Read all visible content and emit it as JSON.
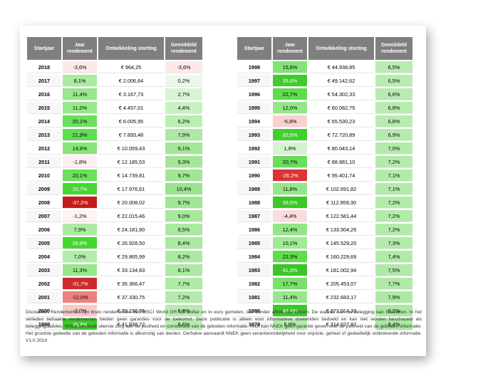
{
  "headers": [
    "Startjaar",
    "Jaar rendement",
    "Ontwikkeling storting",
    "Gemiddeld rendement"
  ],
  "left_rows": [
    {
      "year": "2018",
      "ret": "-3,6%",
      "val": "€ 964,25",
      "avg": "-3,6%",
      "rc": "#fde9ea",
      "ac": "#fde9ea"
    },
    {
      "year": "2017",
      "ret": "8,1%",
      "val": "€ 2.006,64",
      "avg": "0,2%",
      "rc": "#a9eca0",
      "ac": "#ecf9ea"
    },
    {
      "year": "2016",
      "ret": "11,4%",
      "val": "€ 3.167,73",
      "avg": "2,7%",
      "rc": "#96e88a",
      "ac": "#d8f5d3"
    },
    {
      "year": "2015",
      "ret": "11,0%",
      "val": "€ 4.457,01",
      "avg": "4,4%",
      "rc": "#98e88d",
      "ac": "#c8f1c1"
    },
    {
      "year": "2014",
      "ret": "20,1%",
      "val": "€ 6.005,95",
      "avg": "6,2%",
      "rc": "#6cdf5c",
      "ac": "#baeeb2"
    },
    {
      "year": "2013",
      "ret": "21,9%",
      "val": "€ 7.893,48",
      "avg": "7,9%",
      "rc": "#62dd51",
      "ac": "#ade9a4"
    },
    {
      "year": "2012",
      "ret": "14,8%",
      "val": "€ 10.059,43",
      "avg": "9,1%",
      "rc": "#86e479",
      "ac": "#a4e79a"
    },
    {
      "year": "2011",
      "ret": "-1,8%",
      "val": "€ 12.185,53",
      "avg": "9,3%",
      "rc": "#fdf0f1",
      "ac": "#a3e698"
    },
    {
      "year": "2010",
      "ret": "20,1%",
      "val": "€ 14.739,81",
      "avg": "9,7%",
      "rc": "#6cdf5c",
      "ac": "#a0e695"
    },
    {
      "year": "2009",
      "ret": "26,7%",
      "val": "€ 17.976,61",
      "avg": "10,4%",
      "rc": "#47d534",
      "ac": "#99e48d"
    },
    {
      "year": "2008",
      "ret": "-37,2%",
      "val": "€ 20.008,02",
      "avg": "9,7%",
      "rc": "#c41a1a",
      "ac": "#a0e695"
    },
    {
      "year": "2007",
      "ret": "-1,2%",
      "val": "€ 22.015,46",
      "avg": "9,0%",
      "rc": "#fdf3f3",
      "ac": "#a6e79c"
    },
    {
      "year": "2006",
      "ret": "7,9%",
      "val": "€ 24.181,90",
      "avg": "8,5%",
      "rc": "#aaeca2",
      "ac": "#a9e9a0"
    },
    {
      "year": "2005",
      "ret": "26,8%",
      "val": "€ 26.928,50",
      "avg": "8,4%",
      "rc": "#47d534",
      "ac": "#aae9a1"
    },
    {
      "year": "2004",
      "ret": "7,0%",
      "val": "€ 29.865,99",
      "avg": "8,2%",
      "rc": "#b0eda8",
      "ac": "#abe9a2"
    },
    {
      "year": "2003",
      "ret": "11,3%",
      "val": "€ 33.134,83",
      "avg": "8,1%",
      "rc": "#97e88c",
      "ac": "#aceaa3"
    },
    {
      "year": "2002",
      "ret": "-31,7%",
      "val": "€ 35.366,47",
      "avg": "7,7%",
      "rc": "#cb2b2b",
      "ac": "#afeaa6"
    },
    {
      "year": "2001",
      "ret": "-12,0%",
      "val": "€ 37.330,75",
      "avg": "7,2%",
      "rc": "#ee8080",
      "ac": "#b3ebab"
    },
    {
      "year": "2000",
      "ret": "-7,0%",
      "val": "€ 39.156,95",
      "avg": "6,8%",
      "rc": "#f8c9c9",
      "ac": "#b6ecae"
    },
    {
      "year": "1999",
      "ret": "46,9%",
      "val": "€ 41.838,72",
      "avg": "6,6%",
      "rc": "#3ec72b",
      "ac": "#b7ecb0"
    }
  ],
  "right_rows": [
    {
      "year": "1998",
      "ret": "15,6%",
      "val": "€ 44.938,85",
      "avg": "6,5%",
      "rc": "#82e376",
      "ac": "#b8edb1"
    },
    {
      "year": "1997",
      "ret": "35,6%",
      "val": "€ 49.142,62",
      "avg": "6,5%",
      "rc": "#3fcc2c",
      "ac": "#b8edb1"
    },
    {
      "year": "1996",
      "ret": "22,7%",
      "val": "€ 54.302,33",
      "avg": "6,6%",
      "rc": "#5fdc4e",
      "ac": "#b7ecb0"
    },
    {
      "year": "1995",
      "ret": "12,0%",
      "val": "€ 60.082,75",
      "avg": "6,8%",
      "rc": "#93e787",
      "ac": "#b6ecae"
    },
    {
      "year": "1994",
      "ret": "-5,8%",
      "val": "€ 65.530,23",
      "avg": "6,8%",
      "rc": "#f9d0d0",
      "ac": "#b6ecae"
    },
    {
      "year": "1993",
      "ret": "32,0%",
      "val": "€ 72.720,89",
      "avg": "6,9%",
      "rc": "#42d02f",
      "ac": "#b5ecad"
    },
    {
      "year": "1992",
      "ret": "1,8%",
      "val": "€ 80.043,14",
      "avg": "7,0%",
      "rc": "#d4f4cf",
      "ac": "#b4ebac"
    },
    {
      "year": "1991",
      "ret": "20,7%",
      "val": "€ 88.881,10",
      "avg": "7,2%",
      "rc": "#69de59",
      "ac": "#b3ebab"
    },
    {
      "year": "1990",
      "ret": "-26,2%",
      "val": "€ 95.401,74",
      "avg": "7,1%",
      "rc": "#d93535",
      "ac": "#b3ebab"
    },
    {
      "year": "1989",
      "ret": "11,8%",
      "val": "€ 102.691,82",
      "avg": "7,1%",
      "rc": "#94e788",
      "ac": "#b3ebab"
    },
    {
      "year": "1988",
      "ret": "39,5%",
      "val": "€ 112.859,30",
      "avg": "7,2%",
      "rc": "#3cc829",
      "ac": "#b3ebab"
    },
    {
      "year": "1987",
      "ret": "-4,4%",
      "val": "€ 122.581,44",
      "avg": "7,2%",
      "rc": "#fbdcdc",
      "ac": "#b3ebab"
    },
    {
      "year": "1986",
      "ret": "12,4%",
      "val": "€ 133.504,26",
      "avg": "7,2%",
      "rc": "#91e785",
      "ac": "#b3ebab"
    },
    {
      "year": "1985",
      "ret": "10,1%",
      "val": "€ 145.529,20",
      "avg": "7,3%",
      "rc": "#9deb92",
      "ac": "#b2ebaa"
    },
    {
      "year": "1984",
      "ret": "22,3%",
      "val": "€ 160.229,69",
      "avg": "7,4%",
      "rc": "#61dc50",
      "ac": "#b1eba9"
    },
    {
      "year": "1983",
      "ret": "41,3%",
      "val": "€ 181.002,94",
      "avg": "7,5%",
      "rc": "#3cc529",
      "ac": "#b0eaa8"
    },
    {
      "year": "1982",
      "ret": "17,7%",
      "val": "€ 205.453,07",
      "avg": "7,7%",
      "rc": "#79e16b",
      "ac": "#afeaa6"
    },
    {
      "year": "1981",
      "ret": "11,4%",
      "val": "€ 232.683,17",
      "avg": "7,9%",
      "rc": "#96e88a",
      "ac": "#ade9a4"
    },
    {
      "year": "1980",
      "ret": "44,4%",
      "val": "€ 272.014,33",
      "avg": "8,2%",
      "rc": "#3ec72b",
      "ac": "#abe9a2"
    },
    {
      "year": "1979",
      "ret": "6,8%",
      "val": "€ 314.027,87",
      "avg": "8,4%",
      "rc": "#b1eda9",
      "ac": "#aae9a1"
    }
  ],
  "disclaimer": "Disclaimer: Rendementen zijn bruto rendementen van MSCI World GR US Dollar en in euro gemeten, dus zonder aftrek van kosten. De waarde van uw belegging kan fluctueren. In het verleden behaalde rendementen bieden geen garanties voor de toekomst. Deze publicatie is alleen voor informatieve doeleinden bedoeld en kan niet worden beschouwd als beleggingsadvies. NNEK besteedt uiterste zorg aan de juistheid en correctheid van de geboden informatie. Toch kan NNEK geen garantie geven voor de juistheid van de geboden informatie. Het grootste gedeelte van de geboden informatie is afkomstig van derden. Derhalve aanvaardt NNEK geen verantwoordelijkheid voor onjuiste, geheel of gedeeltelijk ontbrekende informatie. V1.0 2019"
}
